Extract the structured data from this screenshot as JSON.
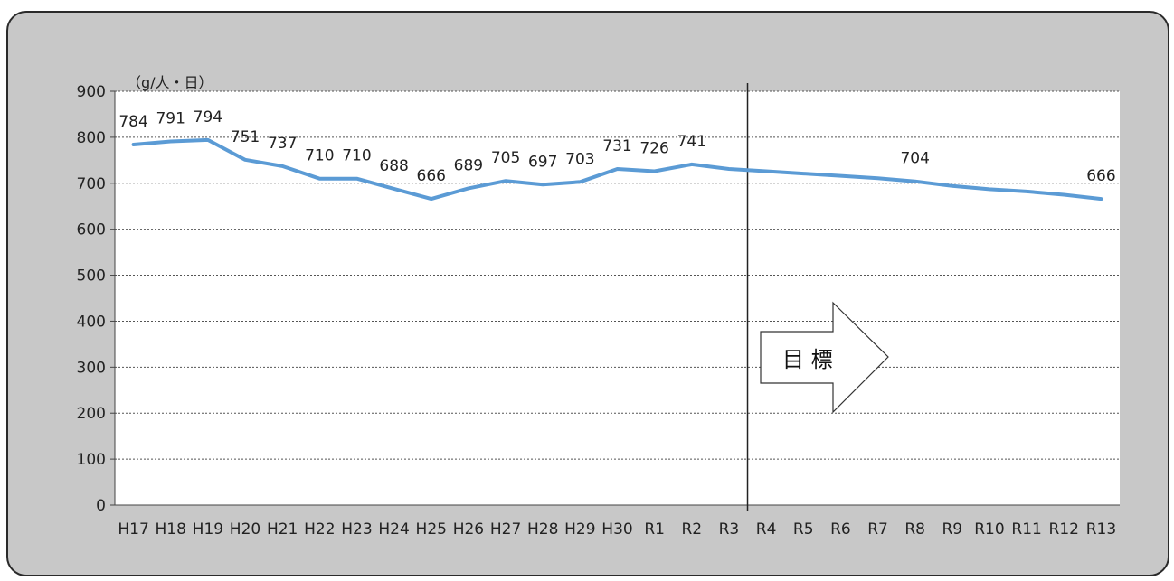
{
  "chart_data": {
    "type": "line",
    "unit_label": "（g/人・日）",
    "categories": [
      "H17",
      "H18",
      "H19",
      "H20",
      "H21",
      "H22",
      "H23",
      "H24",
      "H25",
      "H26",
      "H27",
      "H28",
      "H29",
      "H30",
      "R1",
      "R2",
      "R3",
      "R4",
      "R5",
      "R6",
      "R7",
      "R8",
      "R9",
      "R10",
      "R11",
      "R12",
      "R13"
    ],
    "series": [
      {
        "values": [
          784,
          791,
          794,
          751,
          737,
          710,
          710,
          688,
          666,
          689,
          705,
          697,
          703,
          731,
          726,
          741,
          731,
          726,
          721,
          716,
          711,
          704,
          694,
          687,
          682,
          675,
          666
        ],
        "color": "#5b9bd5"
      }
    ],
    "data_labels": [
      "784",
      "791",
      "794",
      "751",
      "737",
      "710",
      "710",
      "688",
      "666",
      "689",
      "705",
      "697",
      "703",
      "731",
      "726",
      "741",
      null,
      null,
      null,
      null,
      null,
      "704",
      null,
      null,
      null,
      null,
      "666"
    ],
    "ylim": [
      0,
      900
    ],
    "yticks": [
      0,
      100,
      200,
      300,
      400,
      500,
      600,
      700,
      800,
      900
    ],
    "grid": true,
    "divider_after_category": "R3",
    "target_arrow_label": "目 標",
    "title": "",
    "xlabel": "",
    "ylabel": ""
  }
}
